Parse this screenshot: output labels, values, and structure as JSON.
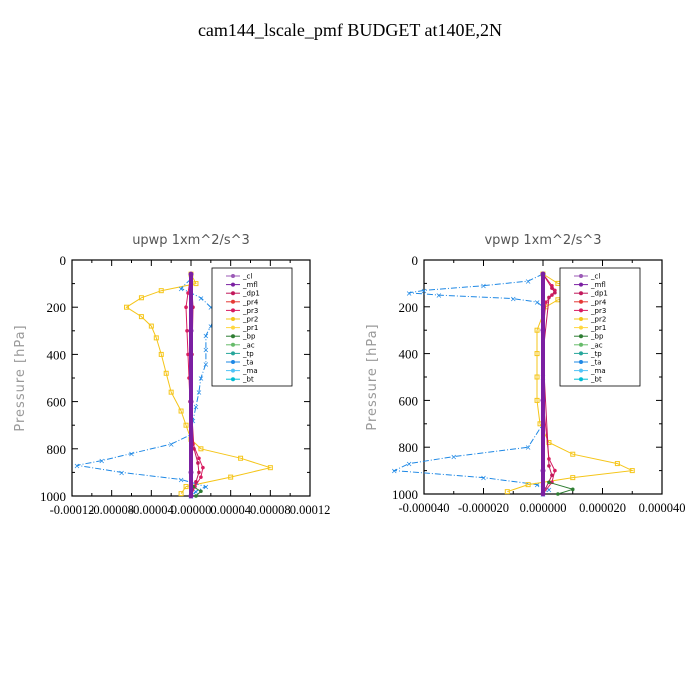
{
  "page_title": "cam144_lscale_pmf  BUDGET at140E,2N",
  "colors": {
    "cl": "#9b59b6",
    "mfl": "#7b1fa2",
    "dp1": "#c2185b",
    "pr4": "#e53935",
    "pr3": "#d81b60",
    "pr2": "#f5c518",
    "pr1": "#ffd740",
    "bp": "#2e7d32",
    "ac": "#66bb6a",
    "tp": "#26a69a",
    "ta": "#1e88e5",
    "ma": "#4fc3f7",
    "bt": "#00bcd4"
  },
  "chart_data": [
    {
      "type": "line",
      "title": "upwp   1xm^2/s^3",
      "ylabel": "Pressure  [hPa]",
      "xlim": [
        -0.00012,
        0.00012
      ],
      "ylim": [
        0,
        1000
      ],
      "y_inverted": true,
      "xticks": [
        -0.00012,
        -8e-05,
        -4e-05,
        0,
        4e-05,
        8e-05,
        0.00012
      ],
      "xtick_labels": [
        "-0.00012",
        "-0.00008",
        "-0.00004",
        "0.00000",
        "0.00004",
        "0.00008",
        "0.00012"
      ],
      "yticks": [
        0,
        200,
        400,
        600,
        800,
        1000
      ],
      "ytick_labels": [
        "0",
        "200",
        "400",
        "600",
        "800",
        "1000"
      ],
      "legend": [
        "_cl",
        "_mfl",
        "_dp1",
        "_pr4",
        "_pr3",
        "_pr2",
        "_pr1",
        "_bp",
        "_ac",
        "_tp",
        "_ta",
        "_ma",
        "_bt"
      ],
      "legend_position": "top-right",
      "series": [
        {
          "key": "pr2",
          "y": [
            60,
            100,
            130,
            160,
            200,
            240,
            280,
            330,
            400,
            480,
            560,
            640,
            700,
            760,
            800,
            840,
            880,
            920,
            960,
            990
          ],
          "x": [
            0,
            5e-06,
            -3e-05,
            -5e-05,
            -6.5e-05,
            -5e-05,
            -4e-05,
            -3.5e-05,
            -3e-05,
            -2.5e-05,
            -2e-05,
            -1e-05,
            -5e-06,
            0,
            1e-05,
            5e-05,
            8e-05,
            4e-05,
            -5e-06,
            -1e-05
          ]
        },
        {
          "key": "ta",
          "y": [
            80,
            120,
            160,
            200,
            240,
            280,
            320,
            380,
            440,
            500,
            560,
            620,
            680,
            740,
            780,
            820,
            850,
            870,
            900,
            930,
            960,
            980,
            1000
          ],
          "x": [
            0,
            -1e-05,
            1e-05,
            2e-05,
            2.5e-05,
            2e-05,
            1.5e-05,
            1.5e-05,
            1.5e-05,
            1e-05,
            8e-06,
            5e-06,
            2e-06,
            0,
            -2e-05,
            -6e-05,
            -9e-05,
            -0.000115,
            -7e-05,
            -1e-05,
            1.5e-05,
            5e-06,
            0
          ]
        },
        {
          "key": "pr3",
          "y": [
            60,
            140,
            200,
            300,
            400,
            500,
            600,
            700,
            780,
            840,
            880,
            920,
            960,
            1000
          ],
          "x": [
            0,
            -3e-06,
            -5e-06,
            -4e-06,
            -3e-06,
            -2e-06,
            -1e-06,
            0,
            2e-06,
            8e-06,
            1.2e-05,
            1e-05,
            4e-06,
            0
          ]
        },
        {
          "key": "dp1",
          "y": [
            60,
            200,
            400,
            600,
            800,
            860,
            900,
            940,
            1000
          ],
          "x": [
            0,
            2e-06,
            1e-06,
            0,
            3e-06,
            7e-06,
            8e-06,
            5e-06,
            0
          ]
        },
        {
          "key": "bp",
          "y": [
            960,
            980,
            1000
          ],
          "x": [
            2e-06,
            1e-05,
            5e-06
          ]
        },
        {
          "key": "mfl",
          "y": [
            60,
            300,
            600,
            900,
            1000
          ],
          "x": [
            0,
            0,
            0,
            0,
            0
          ]
        }
      ]
    },
    {
      "type": "line",
      "title": "vpwp   1xm^2/s^3",
      "ylabel": "Pressure  [hPa]",
      "xlim": [
        -4e-05,
        4e-05
      ],
      "ylim": [
        0,
        1000
      ],
      "y_inverted": true,
      "xticks": [
        -4e-05,
        -2e-05,
        0,
        2e-05,
        4e-05
      ],
      "xtick_labels": [
        "-0.000040",
        "-0.000020",
        "0.000000",
        "0.000020",
        "0.000040"
      ],
      "yticks": [
        0,
        200,
        400,
        600,
        800,
        1000
      ],
      "ytick_labels": [
        "0",
        "200",
        "400",
        "600",
        "800",
        "1000"
      ],
      "legend": [
        "_cl",
        "_mfl",
        "_dp1",
        "_pr4",
        "_pr3",
        "_pr2",
        "_pr1",
        "_bp",
        "_ac",
        "_tp",
        "_ta",
        "_ma",
        "_bt"
      ],
      "legend_position": "top-right",
      "series": [
        {
          "key": "ta",
          "y": [
            60,
            90,
            110,
            130,
            140,
            150,
            165,
            180,
            200,
            300,
            500,
            700,
            800,
            840,
            870,
            900,
            930,
            960,
            980,
            1000
          ],
          "x": [
            0,
            -5e-06,
            -2e-05,
            -4e-05,
            -4.5e-05,
            -3.5e-05,
            -1e-05,
            -2e-06,
            0,
            0,
            0,
            0,
            -5e-06,
            -3e-05,
            -4.5e-05,
            -5e-05,
            -2e-05,
            -2e-06,
            2e-06,
            0
          ]
        },
        {
          "key": "pr2",
          "y": [
            60,
            100,
            120,
            140,
            170,
            200,
            300,
            400,
            500,
            600,
            700,
            780,
            830,
            870,
            900,
            930,
            960,
            990
          ],
          "x": [
            0,
            5e-06,
            2e-05,
            2.5e-05,
            5e-06,
            1e-06,
            -2e-06,
            -2e-06,
            -2e-06,
            -2e-06,
            -1e-06,
            2e-06,
            1e-05,
            2.5e-05,
            3e-05,
            1e-05,
            -5e-06,
            -1.2e-05
          ]
        },
        {
          "key": "pr3",
          "y": [
            60,
            110,
            130,
            150,
            180,
            300,
            600,
            850,
            900,
            950,
            1000
          ],
          "x": [
            0,
            3e-06,
            4e-06,
            3e-06,
            1e-06,
            0,
            0,
            2e-06,
            4e-06,
            3e-06,
            0
          ]
        },
        {
          "key": "dp1",
          "y": [
            60,
            120,
            140,
            160,
            400,
            880,
            920,
            1000
          ],
          "x": [
            0,
            3e-06,
            4e-06,
            2e-06,
            0,
            2e-06,
            3e-06,
            0
          ]
        },
        {
          "key": "bp",
          "y": [
            950,
            980,
            1000
          ],
          "x": [
            2e-06,
            1e-05,
            5e-06
          ]
        },
        {
          "key": "mfl",
          "y": [
            60,
            300,
            600,
            900,
            1000
          ],
          "x": [
            0,
            0,
            0,
            0,
            0
          ]
        }
      ]
    }
  ]
}
